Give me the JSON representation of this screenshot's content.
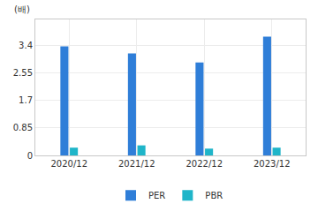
{
  "chart_data": {
    "type": "bar",
    "ylabel": "(배)",
    "categories": [
      "2020/12",
      "2021/12",
      "2022/12",
      "2023/12"
    ],
    "series": [
      {
        "name": "PER",
        "color": "#2f7ed8",
        "values": [
          3.37,
          3.15,
          2.87,
          3.67
        ]
      },
      {
        "name": "PBR",
        "color": "#1fb5c9",
        "values": [
          0.24,
          0.31,
          0.21,
          0.24
        ]
      }
    ],
    "ylim": [
      0,
      4.2
    ],
    "yticks": [
      0,
      0.85,
      1.7,
      2.55,
      3.4
    ],
    "grid": true,
    "legend": "bottom"
  }
}
